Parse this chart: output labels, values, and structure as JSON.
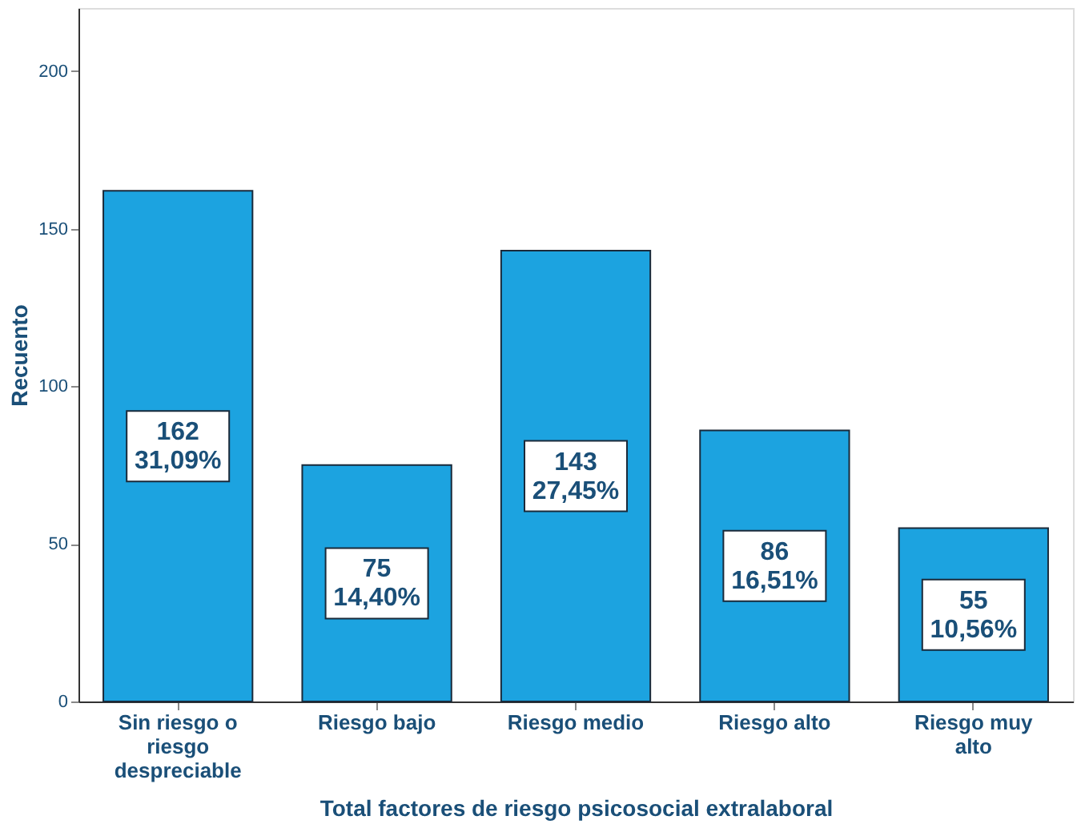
{
  "chart_data": {
    "type": "bar",
    "xlabel": "Total factores de riesgo psicosocial extralaboral",
    "ylabel": "Recuento",
    "categories": [
      "Sin riesgo o riesgo despreciable",
      "Riesgo bajo",
      "Riesgo medio",
      "Riesgo alto",
      "Riesgo muy alto"
    ],
    "values": [
      162,
      75,
      143,
      86,
      55
    ],
    "value_labels": [
      "162\n31,09%",
      "75\n14,40%",
      "143\n27,45%",
      "86\n16,51%",
      "55\n10,56%"
    ],
    "color": "#1ca3e0",
    "ylim": [
      0,
      220
    ],
    "yticks": [
      0,
      50,
      100,
      150,
      200
    ],
    "grid": false
  }
}
